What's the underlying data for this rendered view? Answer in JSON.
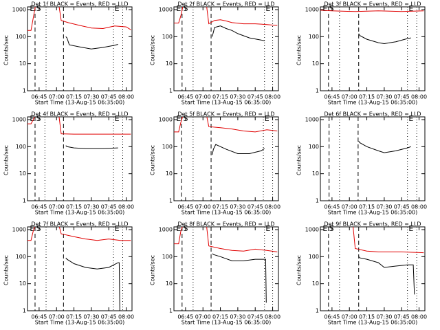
{
  "chart_data": [
    {
      "type": "line",
      "title": "Det 1f BLACK = Events, RED = LLD",
      "xlabel": "Start Time (13-Aug-15 06:35:00)",
      "ylabel": "Counts/sec",
      "yscale": "log",
      "xlim": [
        0,
        90
      ],
      "ylim": [
        1,
        1000
      ],
      "yticks": [
        1,
        10,
        100,
        1000
      ],
      "xticks": [
        {
          "value": 10,
          "label": "06:45"
        },
        {
          "value": 25,
          "label": "07:00"
        },
        {
          "value": 40,
          "label": "07:15"
        },
        {
          "value": 55,
          "label": "07:30"
        },
        {
          "value": 70,
          "label": "07:45"
        },
        {
          "value": 85,
          "label": "08:00"
        }
      ],
      "markers": [
        {
          "x": 6.5,
          "style": "dashed"
        },
        {
          "x": 16,
          "style": "dotted"
        },
        {
          "x": 31,
          "style": "dashed"
        },
        {
          "x": 74,
          "style": "dotted"
        },
        {
          "x": 82,
          "style": "dotted"
        }
      ],
      "marker_labels": [
        {
          "x": 2,
          "label": "E"
        },
        {
          "x": 7.5,
          "label": "S"
        },
        {
          "x": 75,
          "label": "E"
        }
      ],
      "series": [
        {
          "color": "#e00000",
          "x": [
            0,
            3,
            5,
            7,
            27,
            29,
            35,
            45,
            55,
            65,
            75,
            85,
            89
          ],
          "values": [
            170,
            170,
            500,
            1500,
            1500,
            400,
            330,
            260,
            210,
            200,
            250,
            230,
            180
          ]
        },
        {
          "color": "#000000",
          "x": [
            33,
            34,
            36,
            45,
            55,
            65,
            75,
            78
          ],
          "values": [
            100,
            90,
            50,
            42,
            35,
            40,
            48,
            52
          ]
        }
      ]
    },
    {
      "type": "line",
      "title": "Det 2f BLACK = Events, RED = LLD",
      "xlabel": "Start Time (13-Aug-15 06:35:00)",
      "ylabel": "Counts/sec",
      "yscale": "log",
      "xlim": [
        0,
        90
      ],
      "ylim": [
        1,
        1000
      ],
      "yticks": [
        1,
        10,
        100,
        1000
      ],
      "xticks": [
        {
          "value": 10,
          "label": "06:45"
        },
        {
          "value": 25,
          "label": "07:00"
        },
        {
          "value": 40,
          "label": "07:15"
        },
        {
          "value": 55,
          "label": "07:30"
        },
        {
          "value": 70,
          "label": "07:45"
        },
        {
          "value": 85,
          "label": "08:00"
        }
      ],
      "markers": [
        {
          "x": 7,
          "style": "dashed"
        },
        {
          "x": 16.5,
          "style": "dotted"
        },
        {
          "x": 32,
          "style": "dashed"
        },
        {
          "x": 78,
          "style": "dotted"
        },
        {
          "x": 85,
          "style": "dotted"
        }
      ],
      "marker_labels": [
        {
          "x": 2,
          "label": "E"
        },
        {
          "x": 8,
          "label": "S"
        },
        {
          "x": 79,
          "label": "E"
        }
      ],
      "series": [
        {
          "color": "#e00000",
          "x": [
            0,
            4,
            6,
            8,
            28,
            30,
            35,
            40,
            45,
            50,
            60,
            70,
            80,
            89
          ],
          "values": [
            320,
            320,
            600,
            1500,
            1500,
            300,
            400,
            420,
            380,
            330,
            300,
            300,
            280,
            260
          ]
        },
        {
          "color": "#000000",
          "x": [
            33,
            35,
            40,
            45,
            50,
            55,
            65,
            75,
            78
          ],
          "values": [
            100,
            220,
            250,
            200,
            170,
            130,
            90,
            75,
            70
          ]
        }
      ]
    },
    {
      "type": "line",
      "title": "Det 3f BLACK = Events, RED = LLD",
      "xlabel": "Start Time (13-Aug-15 06:35:00)",
      "ylabel": "Counts/sec",
      "yscale": "log",
      "xlim": [
        0,
        90
      ],
      "ylim": [
        1,
        1000
      ],
      "yticks": [
        1,
        10,
        100,
        1000
      ],
      "xticks": [
        {
          "value": 10,
          "label": "06:45"
        },
        {
          "value": 25,
          "label": "07:00"
        },
        {
          "value": 40,
          "label": "07:15"
        },
        {
          "value": 55,
          "label": "07:30"
        },
        {
          "value": 70,
          "label": "07:45"
        },
        {
          "value": 85,
          "label": "08:00"
        }
      ],
      "markers": [
        {
          "x": 7,
          "style": "dashed"
        },
        {
          "x": 16.5,
          "style": "dotted"
        },
        {
          "x": 33,
          "style": "dashed"
        },
        {
          "x": 75,
          "style": "dotted"
        },
        {
          "x": 83,
          "style": "dotted"
        }
      ],
      "marker_labels": [
        {
          "x": 2,
          "label": "E"
        },
        {
          "x": 7.5,
          "label": "S"
        },
        {
          "x": 76,
          "label": "E"
        }
      ],
      "series": [
        {
          "color": "#e00000",
          "x": [
            0,
            10,
            30,
            50,
            70,
            89
          ],
          "values": [
            950,
            900,
            850,
            900,
            850,
            900
          ]
        },
        {
          "color": "#000000",
          "x": [
            33,
            34,
            40,
            50,
            55,
            65,
            75,
            78
          ],
          "values": [
            130,
            110,
            80,
            60,
            55,
            65,
            85,
            90
          ]
        }
      ]
    },
    {
      "type": "line",
      "title": "Det 4f BLACK = Events, RED = LLD",
      "xlabel": "Start Time (13-Aug-15 06:35:00)",
      "ylabel": "Counts/sec",
      "yscale": "log",
      "xlim": [
        0,
        90
      ],
      "ylim": [
        1,
        1000
      ],
      "yticks": [
        1,
        10,
        100,
        1000
      ],
      "xticks": [
        {
          "value": 10,
          "label": "06:45"
        },
        {
          "value": 25,
          "label": "07:00"
        },
        {
          "value": 40,
          "label": "07:15"
        },
        {
          "value": 55,
          "label": "07:30"
        },
        {
          "value": 70,
          "label": "07:45"
        },
        {
          "value": 85,
          "label": "08:00"
        }
      ],
      "markers": [
        {
          "x": 6.5,
          "style": "dashed"
        },
        {
          "x": 15,
          "style": "dotted"
        },
        {
          "x": 31,
          "style": "dashed"
        },
        {
          "x": 74,
          "style": "dotted"
        },
        {
          "x": 82,
          "style": "dotted"
        }
      ],
      "marker_labels": [
        {
          "x": 2,
          "label": "E"
        },
        {
          "x": 7.5,
          "label": "S"
        },
        {
          "x": 75,
          "label": "E"
        }
      ],
      "series": [
        {
          "color": "#e00000",
          "x": [
            0,
            3,
            5,
            7,
            27,
            29,
            40,
            60,
            89
          ],
          "values": [
            700,
            700,
            1000,
            1500,
            1500,
            300,
            290,
            290,
            290
          ]
        },
        {
          "color": "#000000",
          "x": [
            33,
            34,
            40,
            50,
            65,
            78
          ],
          "values": [
            110,
            100,
            90,
            85,
            85,
            90
          ]
        }
      ]
    },
    {
      "type": "line",
      "title": "Det 5f BLACK = Events, RED = LLD",
      "xlabel": "Start Time (13-Aug-15 06:35:00)",
      "ylabel": "Counts/sec",
      "yscale": "log",
      "xlim": [
        0,
        90
      ],
      "ylim": [
        1,
        1000
      ],
      "yticks": [
        1,
        10,
        100,
        1000
      ],
      "xticks": [
        {
          "value": 10,
          "label": "06:45"
        },
        {
          "value": 25,
          "label": "07:00"
        },
        {
          "value": 40,
          "label": "07:15"
        },
        {
          "value": 55,
          "label": "07:30"
        },
        {
          "value": 70,
          "label": "07:45"
        },
        {
          "value": 85,
          "label": "08:00"
        }
      ],
      "markers": [
        {
          "x": 6.5,
          "style": "dashed"
        },
        {
          "x": 16.5,
          "style": "dotted"
        },
        {
          "x": 32,
          "style": "dashed"
        },
        {
          "x": 77,
          "style": "dotted"
        },
        {
          "x": 85,
          "style": "dotted"
        }
      ],
      "marker_labels": [
        {
          "x": 2,
          "label": "E"
        },
        {
          "x": 8,
          "label": "S"
        },
        {
          "x": 78,
          "label": "E"
        }
      ],
      "series": [
        {
          "color": "#e00000",
          "x": [
            0,
            4,
            6,
            8,
            28,
            30,
            40,
            50,
            60,
            70,
            80,
            89
          ],
          "values": [
            350,
            350,
            800,
            1500,
            1500,
            550,
            500,
            450,
            380,
            350,
            420,
            380
          ]
        },
        {
          "color": "#000000",
          "x": [
            33,
            34,
            36,
            45,
            55,
            65,
            75,
            78
          ],
          "values": [
            50,
            80,
            120,
            80,
            55,
            55,
            70,
            85
          ]
        }
      ]
    },
    {
      "type": "line",
      "title": "Det 6f BLACK = Events, RED = LLD",
      "xlabel": "Start Time (13-Aug-15 06:35:00)",
      "ylabel": "Counts/sec",
      "yscale": "log",
      "xlim": [
        0,
        90
      ],
      "ylim": [
        1,
        1000
      ],
      "yticks": [
        1,
        10,
        100,
        1000
      ],
      "xticks": [
        {
          "value": 10,
          "label": "06:45"
        },
        {
          "value": 25,
          "label": "07:00"
        },
        {
          "value": 40,
          "label": "07:15"
        },
        {
          "value": 55,
          "label": "07:30"
        },
        {
          "value": 70,
          "label": "07:45"
        },
        {
          "value": 85,
          "label": "08:00"
        }
      ],
      "markers": [
        {
          "x": 7.5,
          "style": "dashed"
        },
        {
          "x": 16.5,
          "style": "dotted"
        },
        {
          "x": 32.5,
          "style": "dashed"
        },
        {
          "x": 75,
          "style": "dotted"
        },
        {
          "x": 83,
          "style": "dotted"
        }
      ],
      "marker_labels": [
        {
          "x": 76,
          "label": "E"
        }
      ],
      "series": [
        {
          "color": "#000000",
          "x": [
            33,
            34,
            40,
            50,
            55,
            65,
            75,
            78
          ],
          "values": [
            160,
            140,
            100,
            70,
            60,
            70,
            90,
            100
          ]
        }
      ]
    },
    {
      "type": "line",
      "title": "Det 7f BLACK = Events, RED = LLD",
      "xlabel": "Start Time (13-Aug-15 06:35:00)",
      "ylabel": "Counts/sec",
      "yscale": "log",
      "xlim": [
        0,
        90
      ],
      "ylim": [
        1,
        1000
      ],
      "yticks": [
        1,
        10,
        100,
        1000
      ],
      "xticks": [
        {
          "value": 10,
          "label": "06:45"
        },
        {
          "value": 25,
          "label": "07:00"
        },
        {
          "value": 40,
          "label": "07:15"
        },
        {
          "value": 55,
          "label": "07:30"
        },
        {
          "value": 70,
          "label": "07:45"
        },
        {
          "value": 85,
          "label": "08:00"
        }
      ],
      "markers": [
        {
          "x": 6.5,
          "style": "dashed"
        },
        {
          "x": 16,
          "style": "dotted"
        },
        {
          "x": 31,
          "style": "dashed"
        },
        {
          "x": 74,
          "style": "dotted"
        },
        {
          "x": 82,
          "style": "dotted"
        }
      ],
      "marker_labels": [
        {
          "x": 2,
          "label": "E"
        },
        {
          "x": 7.5,
          "label": "S"
        },
        {
          "x": 75,
          "label": "E"
        }
      ],
      "series": [
        {
          "color": "#e00000",
          "x": [
            0,
            3,
            5,
            7,
            27,
            29,
            40,
            50,
            60,
            70,
            80,
            89
          ],
          "values": [
            400,
            400,
            900,
            1500,
            1500,
            700,
            550,
            450,
            400,
            450,
            400,
            400
          ]
        },
        {
          "color": "#000000",
          "x": [
            33,
            34,
            40,
            50,
            60,
            70,
            78,
            79,
            79.5
          ],
          "values": [
            90,
            80,
            55,
            40,
            35,
            40,
            60,
            60,
            1
          ]
        }
      ]
    },
    {
      "type": "line",
      "title": "Det 8f BLACK = Events, RED = LLD",
      "xlabel": "Start Time (13-Aug-15 06:35:00)",
      "ylabel": "Counts/sec",
      "yscale": "log",
      "xlim": [
        0,
        90
      ],
      "ylim": [
        1,
        1000
      ],
      "yticks": [
        1,
        10,
        100,
        1000
      ],
      "xticks": [
        {
          "value": 10,
          "label": "06:45"
        },
        {
          "value": 25,
          "label": "07:00"
        },
        {
          "value": 40,
          "label": "07:15"
        },
        {
          "value": 55,
          "label": "07:30"
        },
        {
          "value": 70,
          "label": "07:45"
        },
        {
          "value": 85,
          "label": "08:00"
        }
      ],
      "markers": [
        {
          "x": 7,
          "style": "dashed"
        },
        {
          "x": 16.5,
          "style": "dotted"
        },
        {
          "x": 32,
          "style": "dashed"
        },
        {
          "x": 78,
          "style": "dotted"
        },
        {
          "x": 85,
          "style": "dotted"
        }
      ],
      "marker_labels": [
        {
          "x": 2,
          "label": "E"
        },
        {
          "x": 8,
          "label": "S"
        },
        {
          "x": 79,
          "label": "E"
        }
      ],
      "series": [
        {
          "color": "#e00000",
          "x": [
            0,
            4,
            6,
            8,
            28,
            30,
            40,
            50,
            60,
            70,
            80,
            89
          ],
          "values": [
            300,
            300,
            900,
            1500,
            1500,
            250,
            200,
            170,
            160,
            190,
            170,
            150
          ]
        },
        {
          "color": "#000000",
          "x": [
            33,
            34,
            40,
            50,
            60,
            70,
            78,
            79,
            79.5
          ],
          "values": [
            130,
            120,
            100,
            70,
            70,
            80,
            80,
            80,
            2
          ]
        }
      ]
    },
    {
      "type": "line",
      "title": "Det 9f BLACK = Events, RED = LLD",
      "xlabel": "Start Time (13-Aug-15 06:35:00)",
      "ylabel": "Counts/sec",
      "yscale": "log",
      "xlim": [
        0,
        90
      ],
      "ylim": [
        1,
        1000
      ],
      "yticks": [
        1,
        10,
        100,
        1000
      ],
      "xticks": [
        {
          "value": 10,
          "label": "06:45"
        },
        {
          "value": 25,
          "label": "07:00"
        },
        {
          "value": 40,
          "label": "07:15"
        },
        {
          "value": 55,
          "label": "07:30"
        },
        {
          "value": 70,
          "label": "07:45"
        },
        {
          "value": 85,
          "label": "08:00"
        }
      ],
      "markers": [
        {
          "x": 7,
          "style": "dashed"
        },
        {
          "x": 16.5,
          "style": "dotted"
        },
        {
          "x": 33,
          "style": "dashed"
        },
        {
          "x": 75,
          "style": "dotted"
        },
        {
          "x": 83,
          "style": "dotted"
        }
      ],
      "marker_labels": [
        {
          "x": 2,
          "label": "E"
        },
        {
          "x": 7.5,
          "label": "S"
        },
        {
          "x": 76,
          "label": "E"
        }
      ],
      "series": [
        {
          "color": "#e00000",
          "x": [
            28,
            30,
            40,
            50,
            70,
            89
          ],
          "values": [
            1500,
            200,
            160,
            150,
            150,
            140
          ]
        },
        {
          "color": "#000000",
          "x": [
            33,
            34,
            40,
            50,
            55,
            65,
            75,
            80,
            81
          ],
          "values": [
            100,
            90,
            80,
            60,
            40,
            45,
            50,
            50,
            4
          ]
        }
      ]
    }
  ]
}
